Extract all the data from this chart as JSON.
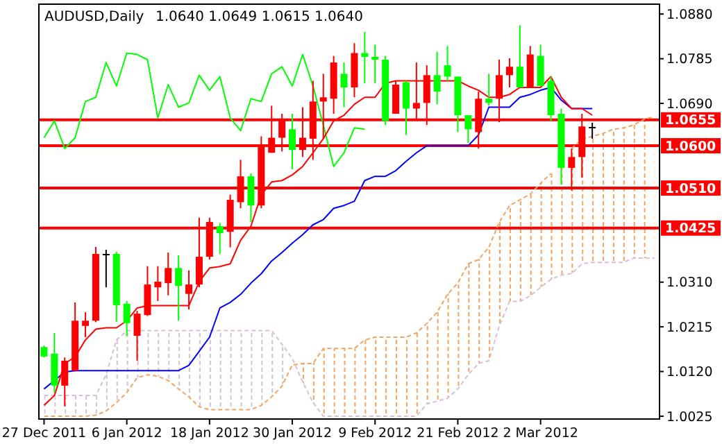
{
  "chart_data": {
    "type": "candlestick",
    "title": "AUDUSD,Daily",
    "subtitle": "1.0640 1.0649 1.0615 1.0640",
    "categories": [
      "27 Dec 2011",
      null,
      null,
      null,
      null,
      null,
      null,
      null,
      "6 Jan 2012",
      null,
      null,
      null,
      null,
      null,
      null,
      null,
      "18 Jan 2012",
      null,
      null,
      null,
      null,
      null,
      null,
      null,
      "30 Jan 2012",
      null,
      null,
      null,
      null,
      null,
      null,
      null,
      "9 Feb 2012",
      null,
      null,
      null,
      null,
      null,
      null,
      null,
      "21 Feb 2012",
      null,
      null,
      null,
      null,
      null,
      null,
      null,
      "2 Mar 2012",
      null,
      null,
      null,
      null,
      null,
      null,
      null,
      null,
      null,
      null,
      null
    ],
    "ohlc": [
      [
        1.0152,
        1.0175,
        1.015,
        1.0172
      ],
      [
        1.009,
        1.0202,
        1.0075,
        1.0158
      ],
      [
        1.0143,
        1.015,
        1.0046,
        1.009
      ],
      [
        1.0228,
        1.0267,
        1.012,
        1.0122
      ],
      [
        1.0228,
        1.0246,
        1.0193,
        1.0217
      ],
      [
        1.037,
        1.0385,
        1.0225,
        1.0228
      ],
      [
        1.037,
        1.0379,
        1.0299,
        1.037
      ],
      [
        1.0261,
        1.0375,
        1.0226,
        1.037
      ],
      [
        1.0223,
        1.027,
        1.0196,
        1.0264
      ],
      [
        1.0243,
        1.0249,
        1.0143,
        1.0196
      ],
      [
        1.0305,
        1.0344,
        1.0238,
        1.024
      ],
      [
        1.0311,
        1.0344,
        1.027,
        1.0299
      ],
      [
        1.034,
        1.0373,
        1.0282,
        1.0308
      ],
      [
        1.0302,
        1.0367,
        1.0228,
        1.034
      ],
      [
        1.0305,
        1.0335,
        1.0252,
        1.0285
      ],
      [
        1.0364,
        1.0447,
        1.0299,
        1.0305
      ],
      [
        1.0438,
        1.0447,
        1.0358,
        1.0364
      ],
      [
        1.0414,
        1.0436,
        1.037,
        1.0429
      ],
      [
        1.0485,
        1.0496,
        1.0384,
        1.0417
      ],
      [
        1.0535,
        1.057,
        1.0467,
        1.048
      ],
      [
        1.0473,
        1.0541,
        1.0438,
        1.0535
      ],
      [
        1.06,
        1.062,
        1.0467,
        1.0473
      ],
      [
        1.0617,
        1.0685,
        1.0585,
        1.0585
      ],
      [
        1.0656,
        1.0668,
        1.0588,
        1.0617
      ],
      [
        1.0591,
        1.0668,
        1.055,
        1.0635
      ],
      [
        1.0617,
        1.0682,
        1.0576,
        1.0591
      ],
      [
        1.0694,
        1.0738,
        1.057,
        1.0615
      ],
      [
        1.0703,
        1.0753,
        1.0615,
        1.0694
      ],
      [
        1.0777,
        1.0791,
        1.0668,
        1.07
      ],
      [
        1.0724,
        1.0777,
        1.0682,
        1.0753
      ],
      [
        1.0797,
        1.0818,
        1.0703,
        1.0724
      ],
      [
        1.0789,
        1.0842,
        1.0733,
        1.0797
      ],
      [
        1.0783,
        1.0815,
        1.0733,
        1.0789
      ],
      [
        1.0653,
        1.0791,
        1.0644,
        1.0783
      ],
      [
        1.073,
        1.0738,
        1.0668,
        1.0668
      ],
      [
        1.0679,
        1.0738,
        1.0623,
        1.0735
      ],
      [
        1.0691,
        1.0777,
        1.0653,
        1.0679
      ],
      [
        1.075,
        1.0771,
        1.0644,
        1.0691
      ],
      [
        1.0715,
        1.08,
        1.0688,
        1.075
      ],
      [
        1.0747,
        1.0812,
        1.0738,
        1.0771
      ],
      [
        1.0665,
        1.0747,
        1.0629,
        1.0747
      ],
      [
        1.0635,
        1.0665,
        1.0606,
        1.0665
      ],
      [
        1.07,
        1.0715,
        1.0594,
        1.0629
      ],
      [
        1.0691,
        1.0753,
        1.0685,
        1.07
      ],
      [
        1.075,
        1.0783,
        1.065,
        1.07
      ],
      [
        1.0768,
        1.0786,
        1.0724,
        1.075
      ],
      [
        1.0724,
        1.0856,
        1.0724,
        1.0768
      ],
      [
        1.0794,
        1.0812,
        1.0724,
        1.0724
      ],
      [
        1.0727,
        1.0815,
        1.0727,
        1.0791
      ],
      [
        1.0665,
        1.0747,
        1.0653,
        1.0738
      ],
      [
        1.0553,
        1.0679,
        1.0517,
        1.0668
      ],
      [
        1.0576,
        1.0594,
        1.0505,
        1.0553
      ],
      [
        1.0641,
        1.0668,
        1.0532,
        1.0576
      ],
      [
        1.064,
        1.0649,
        1.0615,
        1.064
      ],
      null,
      null,
      null,
      null,
      null,
      null
    ],
    "colors": [
      "#00ff00",
      "#00ff00",
      "#ff0000",
      "#ff0000",
      "#ff0000",
      "#ff0000",
      "#000000",
      "#00ff00",
      "#00ff00",
      "#ff0000",
      "#ff0000",
      "#ff0000",
      "#ff0000",
      "#00ff00",
      "#ff0000",
      "#ff0000",
      "#ff0000",
      "#00ff00",
      "#ff0000",
      "#ff0000",
      "#00ff00",
      "#ff0000",
      "#ff0000",
      "#ff0000",
      "#00ff00",
      "#ff0000",
      "#ff0000",
      "#ff0000",
      "#ff0000",
      "#00ff00",
      "#ff0000",
      "#00ff00",
      "#00ff00",
      "#00ff00",
      "#ff0000",
      "#00ff00",
      "#ff0000",
      "#ff0000",
      "#00ff00",
      "#00ff00",
      "#00ff00",
      "#00ff00",
      "#ff0000",
      "#00ff00",
      "#ff0000",
      "#ff0000",
      "#00ff00",
      "#ff0000",
      "#00ff00",
      "#00ff00",
      "#00ff00",
      "#ff0000",
      "#ff0000",
      "#000000",
      null,
      null,
      null,
      null,
      null,
      null
    ],
    "series": [
      {
        "type": "line",
        "color": "#00ff00",
        "values": [
          1.0617,
          1.0653,
          1.0594,
          1.0617,
          1.0694,
          1.0703,
          1.0777,
          1.0727,
          1.0797,
          1.0794,
          1.0783,
          1.0659,
          1.073,
          1.0682,
          1.0691,
          1.075,
          1.0718,
          1.0747,
          1.0659,
          1.0632,
          1.07,
          1.0694,
          1.0753,
          1.0768,
          1.0727,
          1.0794,
          1.0727,
          1.0644,
          1.0556,
          1.0585,
          1.0638,
          1.0635,
          null,
          null,
          null,
          null,
          null,
          null,
          null,
          null,
          null,
          null,
          null,
          null,
          null,
          null,
          null,
          null,
          null,
          null,
          null,
          null,
          null,
          null,
          null,
          null,
          null,
          null,
          null,
          null
        ]
      },
      {
        "type": "line",
        "color": "#d8bfd8",
        "line_style": "dashed",
        "values": [
          1.0069,
          1.0069,
          1.0069,
          1.0069,
          1.0069,
          1.0069,
          1.0113,
          1.0187,
          1.0207,
          1.0207,
          1.0207,
          1.0207,
          1.0207,
          1.0207,
          1.0207,
          1.0207,
          1.0207,
          1.0207,
          1.0207,
          1.0207,
          1.0207,
          1.0207,
          1.0207,
          1.0178,
          1.0148,
          1.0098,
          1.0054,
          1.0025,
          1.0025,
          1.0025,
          1.0025,
          1.0025,
          1.0025,
          1.0025,
          1.0025,
          1.0025,
          1.0025,
          1.0051,
          1.0057,
          1.0063,
          1.0083,
          1.0113,
          1.0137,
          1.0143,
          1.0216,
          1.0269,
          1.0269,
          1.0281,
          1.0299,
          1.0316,
          1.0325,
          1.0328,
          1.0349,
          1.0352,
          1.0352,
          1.0352,
          1.0352,
          1.0361,
          1.0361,
          1.0361
        ],
        "lower": [
          1.0025,
          1.0025,
          1.0025,
          1.0025,
          1.0025,
          1.0027,
          1.0036,
          1.0054,
          1.0075,
          1.0107,
          1.0113,
          1.011,
          1.0101,
          1.0083,
          1.0066,
          1.0045,
          1.0039,
          1.0039,
          1.0039,
          1.0039,
          1.0039,
          1.0048,
          1.0066,
          1.0089,
          1.0134,
          null,
          null,
          null,
          null,
          null,
          null,
          null,
          null,
          null,
          null,
          null,
          null,
          null,
          null,
          null,
          null,
          null,
          null,
          null,
          null,
          null,
          null,
          null,
          null,
          null,
          null,
          null,
          null,
          null,
          null,
          null,
          null,
          null,
          null,
          null
        ],
        "upper": [
          1.0069,
          1.0069,
          1.0069,
          1.0069,
          1.0069,
          1.0069,
          1.0113,
          1.0187,
          1.0207,
          1.0207,
          1.0207,
          1.0207,
          1.0207,
          1.0207,
          1.0207,
          1.0207,
          1.0207,
          1.0207,
          1.0207,
          1.0207,
          1.0207,
          1.0207,
          1.0207,
          1.0178,
          1.0148,
          null,
          null,
          null,
          null,
          null,
          null,
          null,
          null,
          null,
          null,
          null,
          null,
          null,
          null,
          null,
          null,
          null,
          null,
          null,
          null,
          null,
          null,
          null,
          null,
          null,
          null,
          null,
          null,
          null,
          null,
          null,
          null,
          null,
          null,
          null
        ]
      },
      {
        "type": "line",
        "color": "#f4a460",
        "line_style": "dashed",
        "values": [
          1.0025,
          1.0025,
          1.0025,
          1.0025,
          1.0025,
          1.0027,
          1.0036,
          1.0054,
          1.0075,
          1.0107,
          1.0113,
          1.011,
          1.0101,
          1.0083,
          1.0066,
          1.0045,
          1.0039,
          1.0039,
          1.0039,
          1.0039,
          1.0039,
          1.0048,
          1.0066,
          1.0089,
          1.0134,
          1.0137,
          1.0137,
          1.0169,
          1.0169,
          1.0169,
          1.0169,
          1.0187,
          1.0193,
          1.0193,
          1.0193,
          1.0193,
          1.0202,
          1.0222,
          1.0246,
          1.0284,
          1.0308,
          1.0349,
          1.0358,
          1.0384,
          1.0437,
          1.0473,
          1.0485,
          1.0497,
          1.052,
          1.0541,
          null,
          1.0594,
          1.0614,
          1.062,
          1.0626,
          1.0635,
          1.0638,
          1.0644,
          1.0656,
          1.0662
        ],
        "lower": [
          null,
          null,
          null,
          null,
          null,
          null,
          null,
          null,
          null,
          null,
          null,
          null,
          null,
          null,
          null,
          null,
          null,
          null,
          null,
          null,
          null,
          null,
          null,
          null,
          null,
          1.0098,
          1.0054,
          1.0025,
          1.0025,
          1.0025,
          1.0025,
          1.0025,
          1.0025,
          1.0025,
          1.0025,
          1.0025,
          1.0025,
          1.0051,
          1.0057,
          1.0063,
          1.0083,
          1.0113,
          1.0137,
          1.0143,
          1.0216,
          1.0269,
          1.0269,
          1.0281,
          1.0299,
          1.0316,
          1.0325,
          1.0328,
          1.0349,
          1.0352,
          1.0352,
          1.0352,
          1.0352,
          1.0361,
          1.0361,
          1.0361
        ],
        "upper": [
          null,
          null,
          null,
          null,
          null,
          null,
          null,
          null,
          null,
          null,
          null,
          null,
          null,
          null,
          null,
          null,
          null,
          null,
          null,
          null,
          null,
          null,
          null,
          null,
          null,
          1.0137,
          1.0137,
          1.0169,
          1.0169,
          1.0169,
          1.0169,
          1.0187,
          1.0193,
          1.0193,
          1.0193,
          1.0193,
          1.0202,
          1.0222,
          1.0246,
          1.0284,
          1.0308,
          1.0349,
          1.0358,
          1.0384,
          1.0437,
          1.0473,
          1.0485,
          1.0497,
          1.052,
          1.0541,
          1.057,
          1.0594,
          1.0614,
          1.062,
          1.0626,
          1.0635,
          1.0638,
          1.0644,
          1.0656,
          1.0662
        ]
      },
      {
        "type": "line",
        "color": "#0000ff",
        "values": [
          1.0083,
          1.0101,
          1.0119,
          1.0122,
          1.0122,
          1.0122,
          1.0122,
          1.0122,
          1.0122,
          1.0122,
          1.0122,
          1.0122,
          1.0122,
          1.0122,
          1.0133,
          1.0163,
          1.0193,
          1.0255,
          1.0267,
          1.0284,
          1.0308,
          1.0328,
          1.0355,
          1.0373,
          1.0393,
          1.0411,
          1.0432,
          1.0443,
          1.0467,
          1.0473,
          1.0482,
          1.0526,
          1.0535,
          1.0535,
          1.0547,
          1.0567,
          1.0585,
          1.06,
          1.06,
          1.06,
          1.06,
          1.06,
          1.0623,
          1.0682,
          1.0682,
          1.0682,
          1.0703,
          1.0709,
          1.0718,
          1.0724,
          1.0697,
          1.0679,
          1.0679,
          1.0679,
          null,
          null,
          null,
          null,
          null,
          null
        ]
      },
      {
        "type": "line",
        "color": "#ff0000",
        "values": [
          1.0048,
          1.0069,
          1.0137,
          1.0151,
          1.0187,
          1.021,
          1.0213,
          1.0213,
          1.0228,
          1.0255,
          1.026,
          1.026,
          1.026,
          1.026,
          1.026,
          1.0311,
          1.034,
          1.0343,
          1.0349,
          1.0399,
          1.0429,
          1.0496,
          1.0523,
          1.0526,
          1.0538,
          1.0556,
          1.0585,
          1.0615,
          1.0653,
          1.0665,
          1.0688,
          1.0703,
          1.0703,
          1.0733,
          1.0738,
          1.0738,
          1.0738,
          1.0738,
          1.0738,
          1.0738,
          1.0738,
          1.0727,
          1.0718,
          1.0703,
          1.0703,
          1.0709,
          1.0724,
          1.0724,
          1.0724,
          1.0747,
          1.0703,
          1.0679,
          1.0679,
          1.0665,
          null,
          null,
          null,
          null,
          null,
          null
        ]
      }
    ],
    "ylim": [
      1.0019,
      1.0901
    ],
    "yticks": [
      {
        "value": 1.088,
        "label": "1.0880"
      },
      1.0785,
      {
        "value": 1.069,
        "label": "1.0690"
      },
      {
        "value": 1.031,
        "label": "1.0310"
      },
      1.0215,
      {
        "value": 1.012,
        "label": "1.0120"
      },
      1.0025
    ],
    "ref_lines": [
      {
        "axis": "y",
        "value": 1.0655,
        "label": "1.0655",
        "color": "#ff0000"
      },
      {
        "axis": "y",
        "value": 1.06,
        "label": "1.0600",
        "color": "#ff0000"
      },
      {
        "axis": "y",
        "value": 1.051,
        "label": "1.0510",
        "color": "#ff0000"
      },
      {
        "axis": "y",
        "value": 1.0425,
        "label": "1.0425",
        "color": "#ff0000"
      }
    ]
  }
}
